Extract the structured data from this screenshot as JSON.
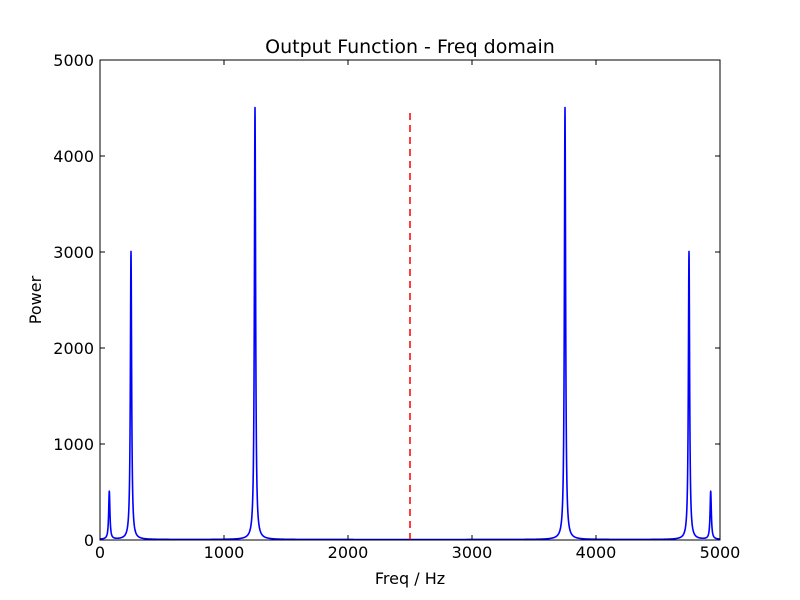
{
  "chart_data": {
    "type": "line",
    "title": "Output Function - Freq domain",
    "xlabel": "Freq / Hz",
    "ylabel": "Power",
    "xlim": [
      0,
      5000
    ],
    "ylim": [
      0,
      5000
    ],
    "x_ticks": [
      0,
      1000,
      2000,
      3000,
      4000,
      5000
    ],
    "y_ticks": [
      0,
      1000,
      2000,
      3000,
      4000,
      5000
    ],
    "x_tick_labels": [
      "0",
      "1000",
      "2000",
      "3000",
      "4000",
      "5000"
    ],
    "y_tick_labels": [
      "0",
      "1000",
      "2000",
      "3000",
      "4000",
      "5000"
    ],
    "grid": false,
    "legend": "none",
    "series": [
      {
        "color": "#0000ff",
        "style": "solid",
        "baseline": 5,
        "peaks": [
          {
            "x": 75,
            "y": 500
          },
          {
            "x": 250,
            "y": 3000
          },
          {
            "x": 1250,
            "y": 4500
          },
          {
            "x": 3750,
            "y": 4500
          },
          {
            "x": 4750,
            "y": 3000
          },
          {
            "x": 4925,
            "y": 500
          }
        ]
      }
    ],
    "annotations": [
      {
        "kind": "vertical-line",
        "x": 2500,
        "y_range": [
          0,
          4450
        ],
        "color": "#ff0000",
        "style": "dashed"
      }
    ]
  }
}
